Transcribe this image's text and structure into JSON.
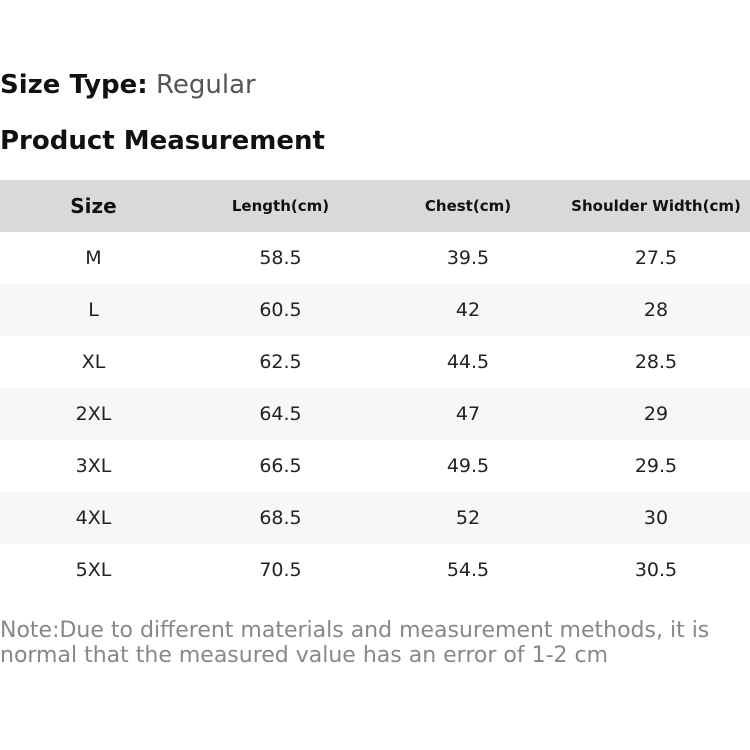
{
  "size_type": {
    "label": "Size Type:",
    "value": "Regular"
  },
  "title": "Product Measurement",
  "table": {
    "header": [
      "Size",
      "Length(cm)",
      "Chest(cm)",
      "Shoulder Width(cm)"
    ],
    "rows": [
      [
        "M",
        "58.5",
        "39.5",
        "27.5"
      ],
      [
        "L",
        "60.5",
        "42",
        "28"
      ],
      [
        "XL",
        "62.5",
        "44.5",
        "28.5"
      ],
      [
        "2XL",
        "64.5",
        "47",
        "29"
      ],
      [
        "3XL",
        "66.5",
        "49.5",
        "29.5"
      ],
      [
        "4XL",
        "68.5",
        "52",
        "30"
      ],
      [
        "5XL",
        "70.5",
        "54.5",
        "30.5"
      ]
    ]
  },
  "note": "Note:Due to different materials and measurement methods, it is normal that the measured value has an error of 1-2 cm"
}
